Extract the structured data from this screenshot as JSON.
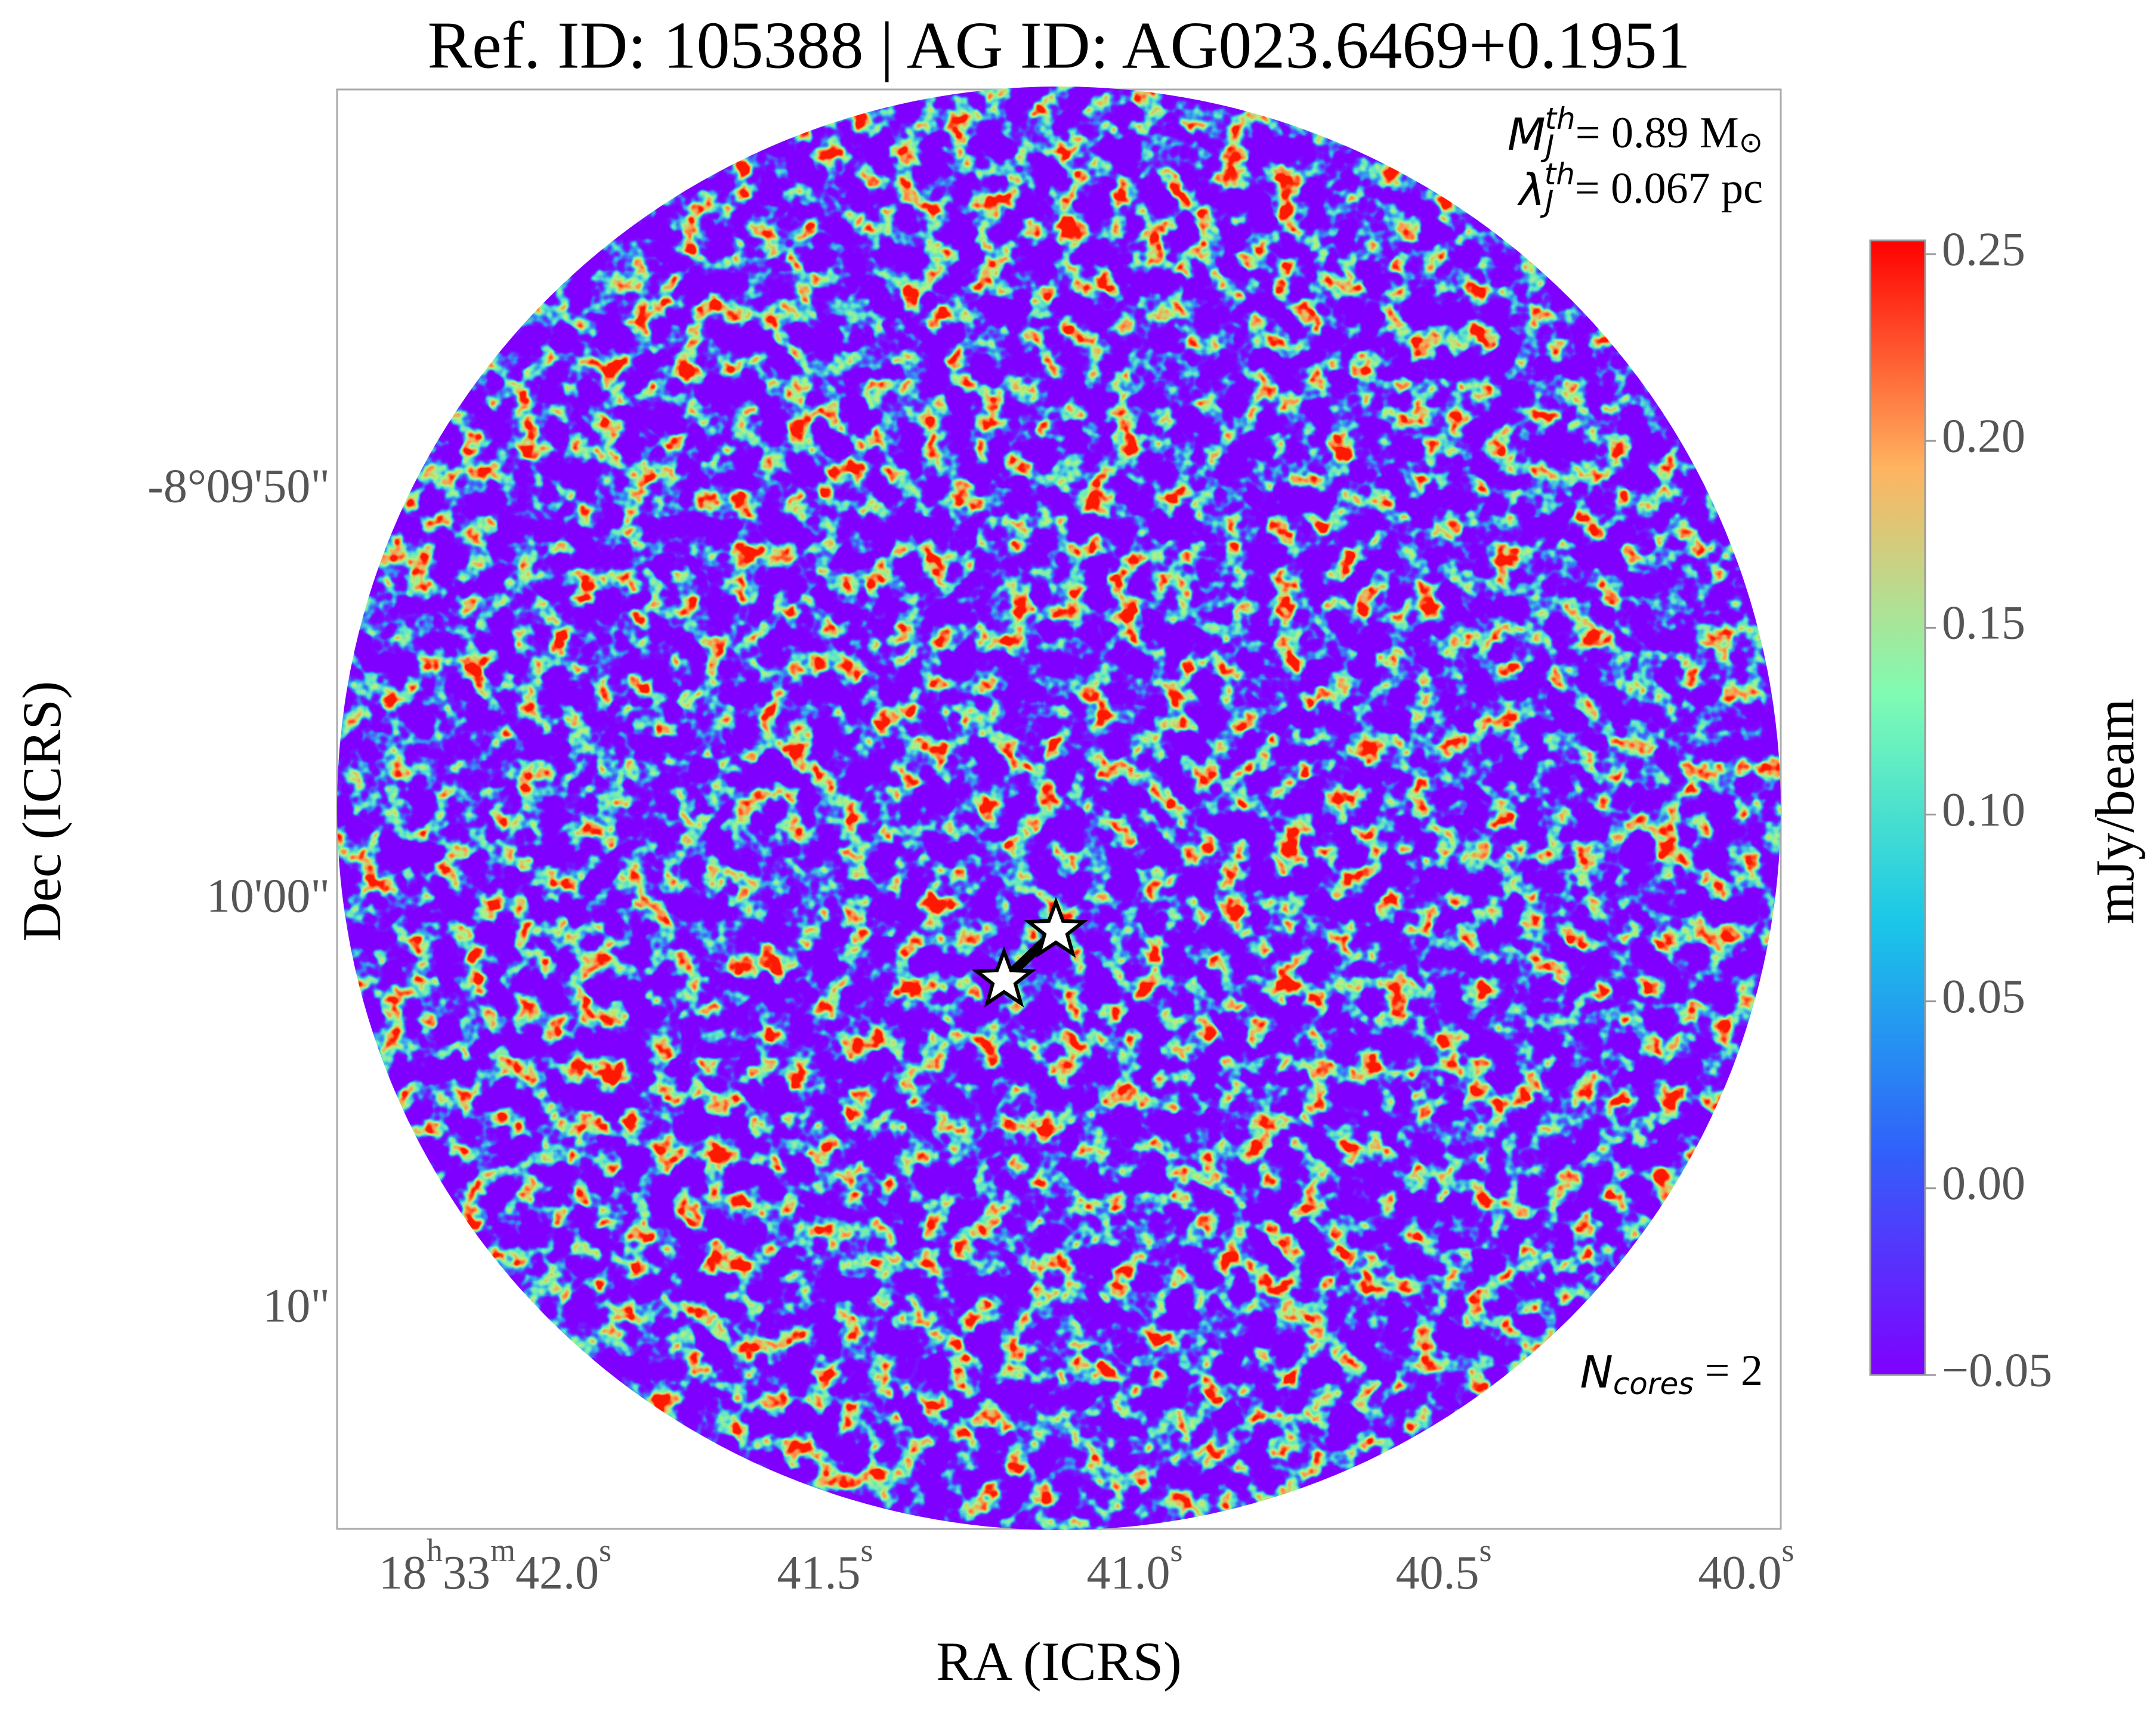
{
  "chart_data": {
    "type": "image",
    "title": "Ref. ID: 105388 | AG ID: AG023.6469+0.1951",
    "xlabel": "RA (ICRS)",
    "ylabel": "Dec (ICRS)",
    "xtick_labels": [
      [
        "18",
        "h",
        "33",
        "m",
        "42.0",
        "s"
      ],
      [
        "41.5",
        "s"
      ],
      [
        "41.0",
        "s"
      ],
      [
        "40.5",
        "s"
      ],
      [
        "40.0",
        "s"
      ]
    ],
    "ytick_labels": [
      "-8°09'50\"",
      "10'00\"",
      "10\""
    ],
    "mass_jeans": {
      "symbol": "M",
      "sub": "J",
      "sup": "th",
      "text": "= 0.89 M",
      "unit_sub": "⊙"
    },
    "length_jeans": {
      "symbol": "λ",
      "sub": "J",
      "sup": "th",
      "text": "= 0.067 pc"
    },
    "cores": {
      "symbol": "N",
      "sub": "cores",
      "text": " = 2"
    },
    "colorbar": {
      "label": "mJy/beam",
      "clim": [
        -0.05,
        0.25
      ],
      "ticks": [
        {
          "value": -0.05,
          "label": "−0.05"
        },
        {
          "value": 0.0,
          "label": "0.00"
        },
        0.05,
        {
          "value": 0.1,
          "label": "0.10"
        },
        0.15,
        {
          "value": 0.2,
          "label": "0.20"
        },
        0.25
      ]
    }
  }
}
